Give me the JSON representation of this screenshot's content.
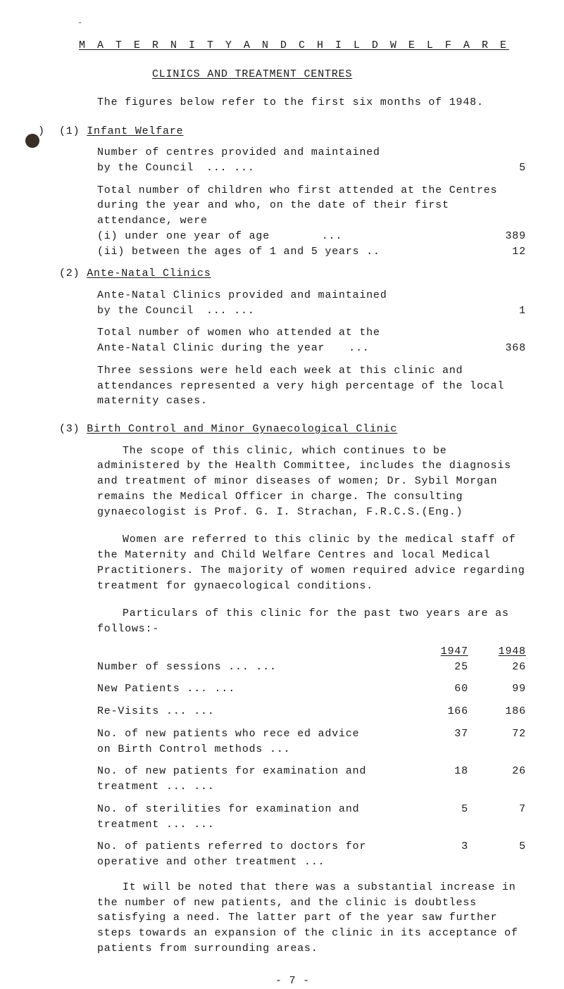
{
  "marks": {
    "tick": "ˆ"
  },
  "title": "M A T E R N I T Y   A N D   C H I L D   W E L F A R E",
  "subtitle": "CLINICS AND TREATMENT CENTRES",
  "lead": "The figures below refer to the first six months of 1948.",
  "bullet_glyph": ")",
  "sections": {
    "s1": {
      "num": "(1)",
      "head": "Infant Welfare",
      "p1a": "Number of centres provided and maintained",
      "p1b": "by the Council",
      "p1dots": "...           ...",
      "p1val": "5",
      "p2": "Total number of children who first attended at the Centres during the year and who, on the date of their first attendance, were",
      "p2a": "(i) under one year of age",
      "p2a_dots": "...",
      "p2a_val": "389",
      "p2b": "(ii) between the ages of 1 and 5 years ..",
      "p2b_val": "12"
    },
    "s2": {
      "num": "(2)",
      "head": "Ante-Natal Clinics",
      "p1a": "Ante-Natal Clinics provided and maintained",
      "p1b": "by the Council",
      "p1dots": "...           ...",
      "p1val": "1",
      "p2a": "Total number of women who attended at the",
      "p2b": "Ante-Natal Clinic during the year",
      "p2dots": "...",
      "p2val": "368",
      "p3": "Three sessions were held each week at this clinic and attendances represented a very high percentage of the local maternity cases."
    },
    "s3": {
      "num": "(3)",
      "head": "Birth Control and Minor Gynaecological Clinic",
      "p1": "The scope of this clinic, which continues to be administered by the Health Committee, includes the diagnosis and treatment of minor diseases of women;  Dr. Sybil Morgan remains the Medical Officer in charge.  The consulting gynaecologist is Prof. G. I. Strachan, F.R.C.S.(Eng.)",
      "p2": "Women are referred to this clinic by the medical staff of the Maternity and Child Welfare Centres and local Medical Practitioners.  The majority of women required advice regarding treatment for gynaecological conditions.",
      "p3": "Particulars of this clinic for the past two years are as follows:-",
      "table": {
        "hdr1": "1947",
        "hdr2": "1948",
        "rows": [
          {
            "lab": "Number of sessions",
            "dots": "...        ...",
            "v1": "25",
            "v2": "26"
          },
          {
            "lab": "New Patients",
            "dots": "...        ...",
            "v1": "60",
            "v2": "99"
          },
          {
            "lab": "Re-Visits",
            "dots": "...        ...",
            "v1": "166",
            "v2": "186"
          },
          {
            "lab": "No. of new patients who rece  ed advice\n  on Birth Control methods",
            "dots": "...",
            "v1": "37",
            "v2": "72"
          },
          {
            "lab": "No. of new patients for examination and\n  treatment",
            "dots": "...        ...",
            "v1": "18",
            "v2": "26"
          },
          {
            "lab": "No. of sterilities for examination and\n  treatment",
            "dots": "...        ...",
            "v1": "5",
            "v2": "7"
          },
          {
            "lab": "No. of patients referred to doctors for\n  operative and other treatment",
            "dots": "...",
            "v1": "3",
            "v2": "5"
          }
        ]
      },
      "p4": "It will be noted that there was a substantial increase in the number of new patients, and the clinic is doubtless satisfying a need.  The latter part of the year saw further steps towards an expansion of the clinic in its acceptance of patients from surrounding areas."
    }
  },
  "footer": "- 7 -"
}
